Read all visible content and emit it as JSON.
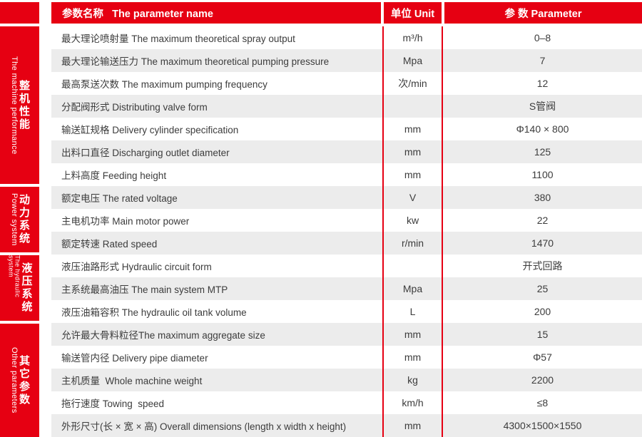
{
  "colors": {
    "accent_red": "#e60012",
    "row_stripe": "#ececec",
    "text": "#3c3c3c"
  },
  "header": {
    "col_name": "参数名称   The parameter name",
    "col_unit": "单位 Unit",
    "col_value": "参 数 Parameter"
  },
  "sidebar": {
    "sections": [
      {
        "cn": "整机性能",
        "en": "The machine performance"
      },
      {
        "cn": "动力系统",
        "en": "Power system"
      },
      {
        "cn": "液压系统",
        "en": "The hydraulic system"
      },
      {
        "cn": "其它参数",
        "en": "Other parameters"
      }
    ]
  },
  "rows": [
    {
      "name": "最大理论喷射量 The maximum theoretical spray output",
      "unit": "m³/h",
      "value": "0–8"
    },
    {
      "name": "最大理论输送压力 The maximum theoretical pumping pressure",
      "unit": "Mpa",
      "value": "7"
    },
    {
      "name": "最高泵送次数 The maximum pumping frequency",
      "unit": "次/min",
      "value": "12"
    },
    {
      "name": "分配阀形式 Distributing valve form",
      "unit": "",
      "value": "S管阀"
    },
    {
      "name": "输送缸规格 Delivery cylinder specification",
      "unit": "mm",
      "value": "Φ140 × 800"
    },
    {
      "name": "出料口直径 Discharging outlet diameter",
      "unit": "mm",
      "value": "125"
    },
    {
      "name": "上料高度 Feeding height",
      "unit": "mm",
      "value": "1100"
    },
    {
      "name": "额定电压 The rated voltage",
      "unit": "V",
      "value": "380"
    },
    {
      "name": "主电机功率 Main motor power",
      "unit": "kw",
      "value": "22"
    },
    {
      "name": "额定转速 Rated speed",
      "unit": "r/min",
      "value": "1470"
    },
    {
      "name": "液压油路形式 Hydraulic circuit form",
      "unit": "",
      "value": "开式回路"
    },
    {
      "name": "主系统最高油压 The main system MTP",
      "unit": "Mpa",
      "value": "25"
    },
    {
      "name": "液压油箱容积 The hydraulic oil tank volume",
      "unit": "L",
      "value": "200"
    },
    {
      "name": "允许最大骨料粒径The maximum aggregate size",
      "unit": "mm",
      "value": "15"
    },
    {
      "name": "输送管内径 Delivery pipe diameter",
      "unit": "mm",
      "value": "Φ57"
    },
    {
      "name": "主机质量  Whole machine weight",
      "unit": "kg",
      "value": "2200"
    },
    {
      "name": "拖行速度 Towing  speed",
      "unit": "km/h",
      "value": "≤8"
    },
    {
      "name": "外形尺寸(长 × 宽 × 高) Overall dimensions (length x width x height)",
      "unit": "mm",
      "value": "4300×1500×1550"
    }
  ]
}
